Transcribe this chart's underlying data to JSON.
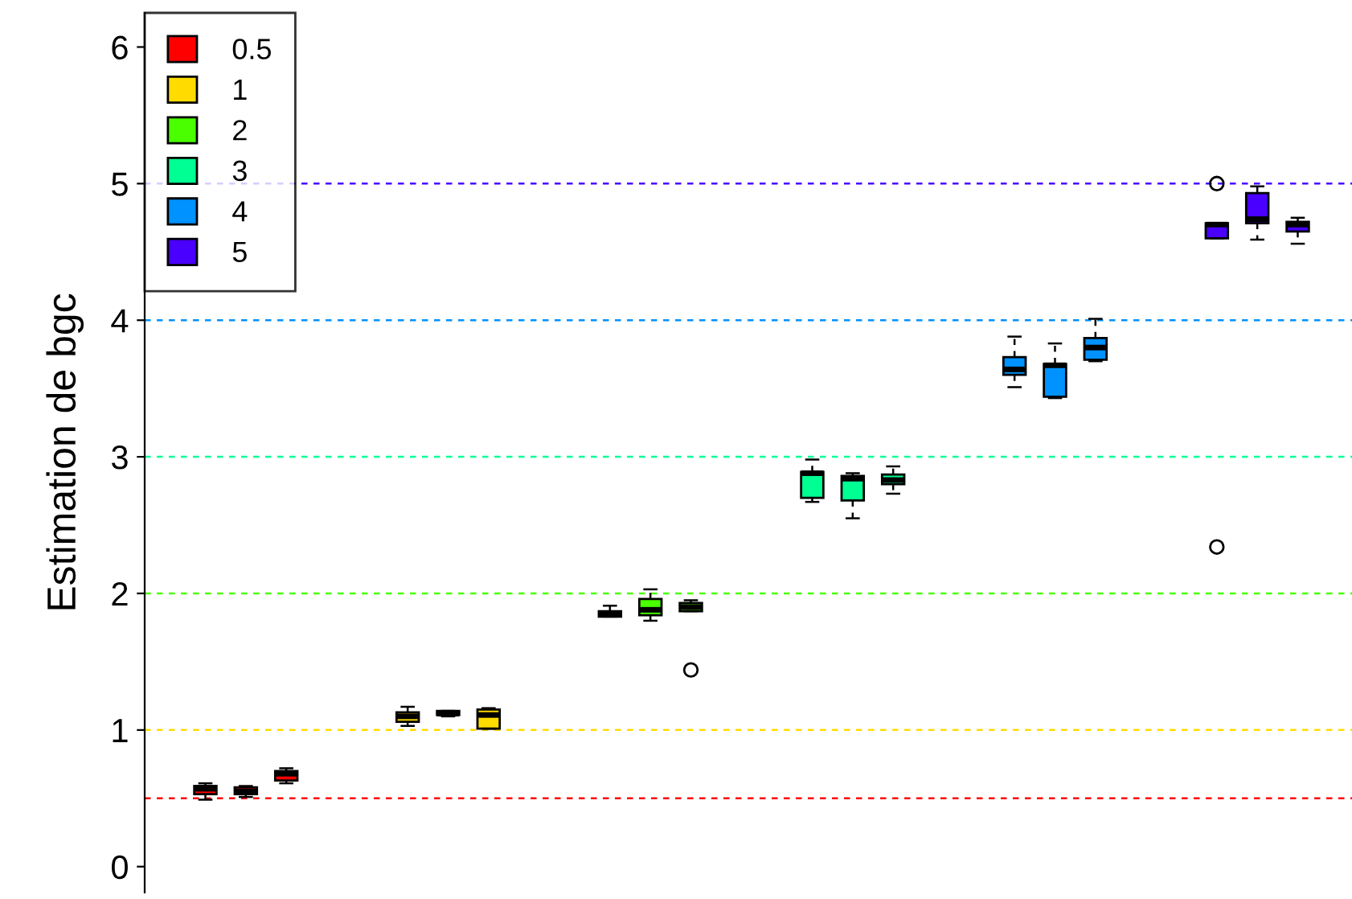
{
  "chart_data": {
    "type": "box",
    "ylabel": "Estimation de bgc",
    "categories": [
      null,
      null,
      null,
      null,
      null,
      null,
      null,
      null,
      null,
      null,
      null,
      null,
      null,
      null,
      null,
      null,
      null,
      null,
      null,
      null,
      null,
      null,
      null,
      null,
      null,
      null,
      null,
      null,
      null,
      null
    ],
    "ylim": [
      -0.19,
      6.25
    ],
    "yticks": [
      0,
      1,
      2,
      3,
      4,
      5,
      6
    ],
    "grid": false,
    "legend": "top left",
    "tick_labels": "y",
    "series": [
      {
        "name": "0.5",
        "color": "#ff0000",
        "boxes": [
          null,
          {
            "low": 0.49,
            "q1": 0.53,
            "median": 0.57,
            "q3": 0.59,
            "high": 0.61
          },
          {
            "low": 0.51,
            "q1": 0.53,
            "median": 0.55,
            "q3": 0.58,
            "high": 0.59
          },
          {
            "low": 0.61,
            "q1": 0.63,
            "median": 0.68,
            "q3": 0.7,
            "high": 0.72
          },
          null,
          null,
          null,
          null,
          null,
          null,
          null,
          null,
          null,
          null,
          null,
          null,
          null,
          null,
          null,
          null,
          null,
          null,
          null,
          null,
          null,
          null,
          null,
          null,
          null,
          null
        ]
      },
      {
        "name": "1",
        "color": "#ffdb00",
        "boxes": [
          null,
          null,
          null,
          null,
          null,
          null,
          {
            "low": 1.03,
            "q1": 1.06,
            "median": 1.1,
            "q3": 1.13,
            "high": 1.17
          },
          {
            "low": 1.1,
            "q1": 1.11,
            "median": 1.12,
            "q3": 1.14,
            "high": 1.14
          },
          {
            "low": 1.01,
            "q1": 1.01,
            "median": 1.11,
            "q3": 1.15,
            "high": 1.16
          },
          null,
          null,
          null,
          null,
          null,
          null,
          null,
          null,
          null,
          null,
          null,
          null,
          null,
          null,
          null,
          null,
          null,
          null,
          null,
          null,
          null
        ]
      },
      {
        "name": "2",
        "color": "#49ff00",
        "boxes": [
          null,
          null,
          null,
          null,
          null,
          null,
          null,
          null,
          null,
          null,
          null,
          {
            "low": 1.83,
            "q1": 1.83,
            "median": 1.85,
            "q3": 1.87,
            "high": 1.91
          },
          {
            "low": 1.8,
            "q1": 1.84,
            "median": 1.88,
            "q3": 1.96,
            "high": 2.03
          },
          {
            "low": 1.87,
            "q1": 1.87,
            "median": 1.9,
            "q3": 1.93,
            "high": 1.95,
            "outliers": [
              1.44
            ]
          },
          null,
          null,
          null,
          null,
          null,
          null,
          null,
          null,
          null,
          null,
          null,
          null,
          null,
          null,
          null,
          null
        ]
      },
      {
        "name": "3",
        "color": "#00ff92",
        "boxes": [
          null,
          null,
          null,
          null,
          null,
          null,
          null,
          null,
          null,
          null,
          null,
          null,
          null,
          null,
          null,
          null,
          {
            "low": 2.67,
            "q1": 2.7,
            "median": 2.88,
            "q3": 2.89,
            "high": 2.98
          },
          {
            "low": 2.55,
            "q1": 2.68,
            "median": 2.84,
            "q3": 2.86,
            "high": 2.88
          },
          {
            "low": 2.73,
            "q1": 2.8,
            "median": 2.83,
            "q3": 2.87,
            "high": 2.93
          },
          null,
          null,
          null,
          null,
          null,
          null,
          null,
          null,
          null,
          null,
          null
        ]
      },
      {
        "name": "4",
        "color": "#0092ff",
        "boxes": [
          null,
          null,
          null,
          null,
          null,
          null,
          null,
          null,
          null,
          null,
          null,
          null,
          null,
          null,
          null,
          null,
          null,
          null,
          null,
          null,
          null,
          {
            "low": 3.51,
            "q1": 3.6,
            "median": 3.64,
            "q3": 3.73,
            "high": 3.88
          },
          {
            "low": 3.43,
            "q1": 3.44,
            "median": 3.67,
            "q3": 3.68,
            "high": 3.83
          },
          {
            "low": 3.7,
            "q1": 3.71,
            "median": 3.8,
            "q3": 3.87,
            "high": 4.01
          },
          null,
          null,
          null,
          null,
          null,
          null
        ]
      },
      {
        "name": "5",
        "color": "#4900ff",
        "boxes": [
          null,
          null,
          null,
          null,
          null,
          null,
          null,
          null,
          null,
          null,
          null,
          null,
          null,
          null,
          null,
          null,
          null,
          null,
          null,
          null,
          null,
          null,
          null,
          null,
          null,
          null,
          {
            "low": 4.6,
            "q1": 4.6,
            "median": 4.7,
            "q3": 4.71,
            "high": 4.71,
            "outliers": [
              5.0,
              2.34
            ]
          },
          {
            "low": 4.59,
            "q1": 4.71,
            "median": 4.74,
            "q3": 4.93,
            "high": 4.98
          },
          {
            "low": 4.56,
            "q1": 4.65,
            "median": 4.7,
            "q3": 4.72,
            "high": 4.75
          },
          null
        ]
      }
    ],
    "ref_lines": [
      {
        "axis": "y",
        "value": 0.5,
        "color": "#ff0000",
        "line_style": "dashed"
      },
      {
        "axis": "y",
        "value": 1,
        "color": "#ffdb00",
        "line_style": "dashed"
      },
      {
        "axis": "y",
        "value": 2,
        "color": "#49ff00",
        "line_style": "dashed"
      },
      {
        "axis": "y",
        "value": 3,
        "color": "#00ff92",
        "line_style": "dashed"
      },
      {
        "axis": "y",
        "value": 4,
        "color": "#0092ff",
        "line_style": "dashed"
      },
      {
        "axis": "y",
        "value": 5,
        "color": "#4900ff",
        "line_style": "dashed"
      }
    ]
  }
}
